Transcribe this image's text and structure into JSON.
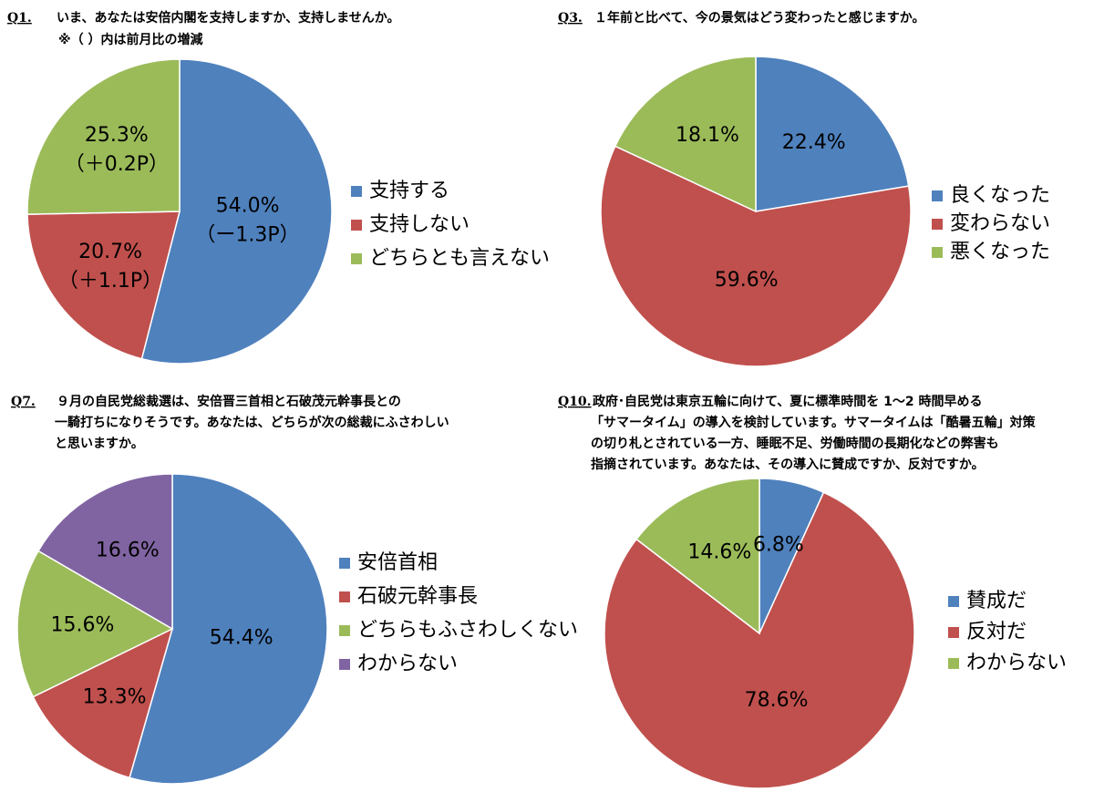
{
  "chart_data": [
    {
      "type": "pie",
      "label": "Q1.",
      "title": [
        "いま、あなたは安倍内閣を支持しますか、支持しませんか。"
      ],
      "subtitle": "※（ ）内は前月比の増減",
      "categories": [
        "支持する",
        "支持しない",
        "どちらとも言えない"
      ],
      "values": [
        54.0,
        20.7,
        25.3
      ],
      "value_labels": [
        "54.0%",
        "20.7%",
        "25.3%"
      ],
      "change_labels": [
        "（ー1.3P）",
        "（＋1.1P）",
        "（＋0.2P）"
      ],
      "colors": [
        "#4f81bd",
        "#c0504d",
        "#9bbb59"
      ],
      "legend": "right"
    },
    {
      "type": "pie",
      "label": "Q3.",
      "title": [
        "１年前と比べて、今の景気はどう変わったと感じますか。"
      ],
      "categories": [
        "良くなった",
        "変わらない",
        "悪くなった"
      ],
      "values": [
        22.4,
        59.6,
        18.1
      ],
      "value_labels": [
        "22.4%",
        "59.6%",
        "18.1%"
      ],
      "colors": [
        "#4f81bd",
        "#c0504d",
        "#9bbb59"
      ],
      "legend": "right"
    },
    {
      "type": "pie",
      "label": "Q7.",
      "title": [
        "９月の自民党総裁選は、安倍晋三首相と石破茂元幹事長との",
        "一騎打ちになりそうです。あなたは、どちらが次の総裁にふさわしい",
        "と思いますか。"
      ],
      "categories": [
        "安倍首相",
        "石破元幹事長",
        "どちらもふさわしくない",
        "わからない"
      ],
      "values": [
        54.4,
        13.3,
        15.6,
        16.6
      ],
      "value_labels": [
        "54.4%",
        "13.3%",
        "15.6%",
        "16.6%"
      ],
      "colors": [
        "#4f81bd",
        "#c0504d",
        "#9bbb59",
        "#8064a2"
      ],
      "legend": "right"
    },
    {
      "type": "pie",
      "label": "Q10.",
      "title": [
        "政府･自民党は東京五輪に向けて、夏に標準時間を 1～2 時間早める",
        "「サマータイム」の導入を検討しています。サマータイムは「酷暑五輪」対策",
        "の切り札とされている一方、睡眠不足、労働時間の長期化などの弊害も",
        "指摘されています。あなたは、その導入に賛成ですか、反対ですか。"
      ],
      "categories": [
        "賛成だ",
        "反対だ",
        "わからない"
      ],
      "values": [
        6.8,
        78.6,
        14.6
      ],
      "value_labels": [
        "6.8%",
        "78.6%",
        "14.6%"
      ],
      "colors": [
        "#4f81bd",
        "#c0504d",
        "#9bbb59"
      ],
      "legend": "right"
    }
  ]
}
